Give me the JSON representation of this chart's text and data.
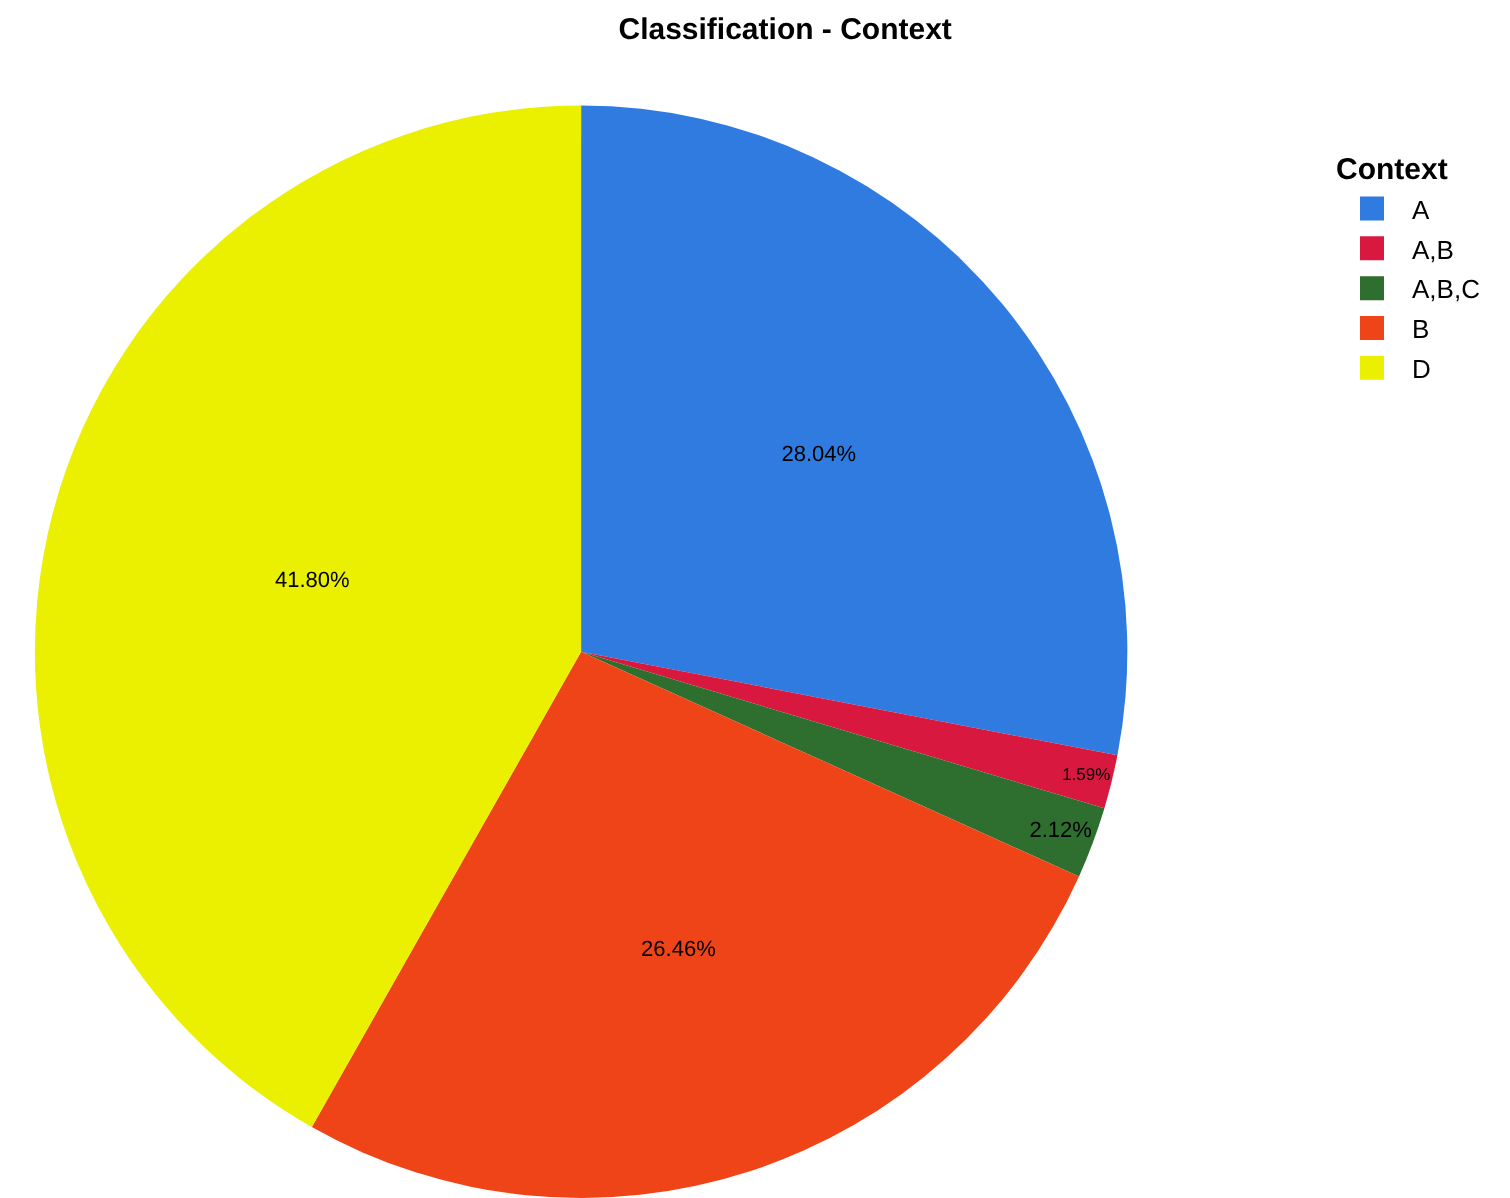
{
  "chart_data": {
    "type": "pie",
    "title": "Classification - Context",
    "legend_title": "Context",
    "legend": "top right",
    "categories": [
      "A",
      "A,B",
      "A,B,C",
      "B",
      "D"
    ],
    "values": [
      28.04,
      1.59,
      2.12,
      26.46,
      41.8
    ],
    "value_labels": [
      "28.04%",
      "1.59%",
      "2.12%",
      "26.46%",
      "41.80%"
    ],
    "colors": [
      "#2f7be0",
      "#d91840",
      "#2e6e2e",
      "#ee4418",
      "#eaf000"
    ]
  }
}
